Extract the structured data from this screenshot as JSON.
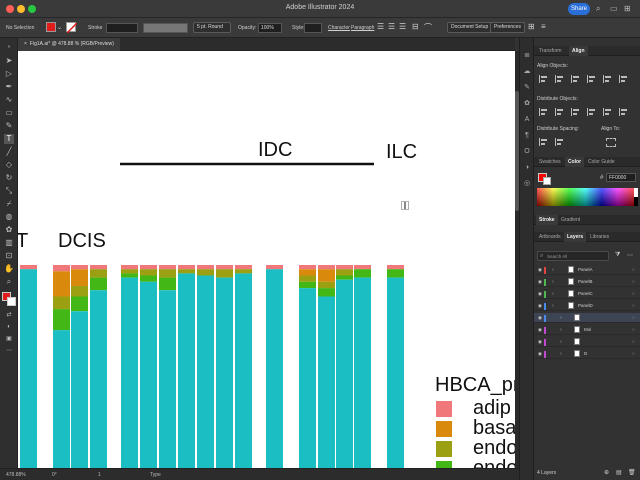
{
  "app": {
    "title": "Adobe Illustrator 2024",
    "share_label": "Share"
  },
  "controlbar": {
    "selection": "No Selection",
    "stroke_label": "Stroke",
    "brush": "5 pt. Round",
    "opacity_label": "Opacity:",
    "opacity_value": "100%",
    "style_label": "Style:",
    "character_label": "Character",
    "paragraph_label": "Paragraph",
    "doc_setup_label": "Document Setup",
    "preferences_label": "Preferences",
    "fill_color": "#e21b1b"
  },
  "document": {
    "tab_title": "Fig1A.ai* @ 478.88 % (RGB/Preview)"
  },
  "artwork": {
    "label_idc": "IDC",
    "label_ilc": "ILC",
    "label_t": "T",
    "label_dcis": "DCIS",
    "legend_title": "HBCA_pr",
    "legend_items": [
      {
        "label": "adip",
        "color": "#f0777a"
      },
      {
        "label": "basa",
        "color": "#d98a0c"
      },
      {
        "label": "endo",
        "color": "#9aa011"
      },
      {
        "label": "endo",
        "color": "#43b716"
      }
    ]
  },
  "statusbar": {
    "zoom": "478.88%",
    "rotation": "0°",
    "artboard": "1",
    "tool": "Type"
  },
  "panels": {
    "top_tabs": [
      "Transform",
      "Align"
    ],
    "align_objects": "Align Objects:",
    "distribute_objects": "Distribute Objects:",
    "distribute_spacing": "Distribute Spacing:",
    "align_to": "Align To:",
    "color_tabs": [
      "Swatches",
      "Color",
      "Color Guide"
    ],
    "hex_value": "FF0000",
    "stroke_tabs": [
      "Stroke",
      "Gradient"
    ],
    "layer_tabs": [
      "Artboards",
      "Layers",
      "Libraries"
    ],
    "search_placeholder": "Search All",
    "layers": [
      {
        "name": "PanelA",
        "color": "#e04646"
      },
      {
        "name": "PanelB",
        "color": "#4fb84f"
      },
      {
        "name": "PanelC",
        "color": "#4fb84f"
      },
      {
        "name": "PanelD",
        "color": "#4a8ae8"
      },
      {
        "name": "<Path>",
        "color": "#4a8ae8"
      },
      {
        "name": "Mol",
        "color": "#c04ad0"
      },
      {
        "name": "<Group>",
        "color": "#c04ad0"
      },
      {
        "name": "D",
        "color": "#c04ad0"
      }
    ],
    "layers_count": "4 Layers"
  }
}
